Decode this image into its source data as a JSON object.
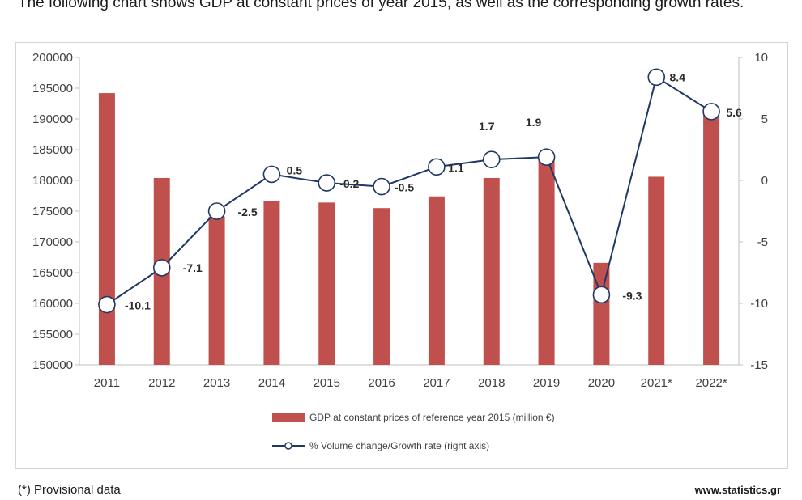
{
  "intro_text": "The following chart shows GDP at constant prices of year 2015, as well as the corresponding growth rates.",
  "chart_data": {
    "type": "bar",
    "categories": [
      "2011",
      "2012",
      "2013",
      "2014",
      "2015",
      "2016",
      "2017",
      "2018",
      "2019",
      "2020",
      "2021*",
      "2022*"
    ],
    "series": [
      {
        "name": "GDP at constant prices of reference year 2015 (million €)",
        "kind": "bar",
        "axis": "left",
        "color": "#c0504d",
        "values": [
          194200,
          180400,
          174100,
          176600,
          176400,
          175500,
          177400,
          180400,
          183300,
          166600,
          180600,
          190600
        ]
      },
      {
        "name": "% Volume change/Growth rate (right axis)",
        "kind": "line",
        "axis": "right",
        "color": "#1f3864",
        "values": [
          -10.1,
          -7.1,
          -2.5,
          0.5,
          -0.2,
          -0.5,
          1.1,
          1.7,
          1.9,
          -9.3,
          8.4,
          5.6
        ],
        "labels": [
          "-10.1",
          "-7.1",
          "-2.5",
          "0.5",
          "-0.2",
          "-0.5",
          "1.1",
          "1.7",
          "1.9",
          "-9.3",
          "8.4",
          "5.6"
        ]
      }
    ],
    "y_left": {
      "min": 150000,
      "max": 200000,
      "step": 5000,
      "ticks": [
        "150000",
        "155000",
        "160000",
        "165000",
        "170000",
        "175000",
        "180000",
        "185000",
        "190000",
        "195000",
        "200000"
      ]
    },
    "y_right": {
      "min": -15,
      "max": 10,
      "step": 5,
      "ticks": [
        "-15",
        "-10",
        "-5",
        "0",
        "5",
        "10"
      ]
    },
    "legend_position": "bottom",
    "grid": false
  },
  "footnote": "(*) Provisional data",
  "source": "www.statistics.gr"
}
